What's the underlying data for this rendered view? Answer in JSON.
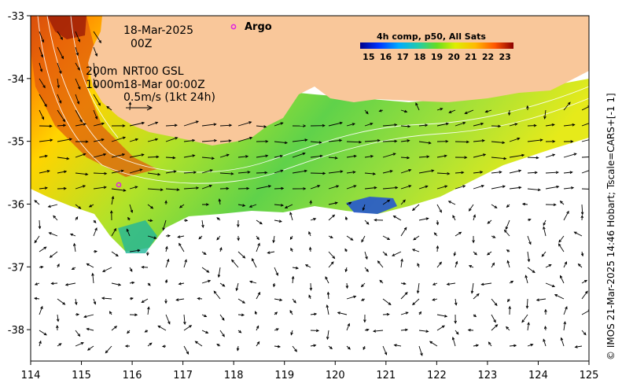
{
  "map": {
    "annotations": {
      "date": "18-Mar-2025",
      "hour": "00Z",
      "isobath_shallow": "200m",
      "isobath_deep": "1000m",
      "source": "NRT00 GSL",
      "vector_time": "18-Mar 00:00Z",
      "vector_scale": "0.5m/s (1kt 24h)"
    },
    "argo": {
      "label": "Argo",
      "lon": 118.0,
      "lat": -33.15,
      "color": "#e020e0"
    },
    "argo_float": {
      "lon": 115.7,
      "lat": -35.7
    },
    "colorbar": {
      "title": "4h comp, p50, All Sats",
      "ticks": [
        "15",
        "16",
        "17",
        "18",
        "19",
        "20",
        "21",
        "22",
        "23"
      ],
      "min": 14.5,
      "max": 23.5
    },
    "axes": {
      "x_ticks": [
        "114",
        "115",
        "116",
        "117",
        "118",
        "119",
        "120",
        "121",
        "122",
        "123",
        "124",
        "125"
      ],
      "y_ticks": [
        "-33",
        "-34",
        "-35",
        "-36",
        "-37",
        "-38"
      ],
      "xlim": [
        114,
        125
      ],
      "ylim": [
        -38.5,
        -33
      ]
    },
    "credit": "© IMOS 21-Mar-2025 14:46 Hobart; Tscale=CARS+[-1 1]",
    "colors": {
      "land": "#f9c79a",
      "nodata": "#ffffff",
      "vector": "#000000",
      "isobath": "#ffffff"
    }
  }
}
